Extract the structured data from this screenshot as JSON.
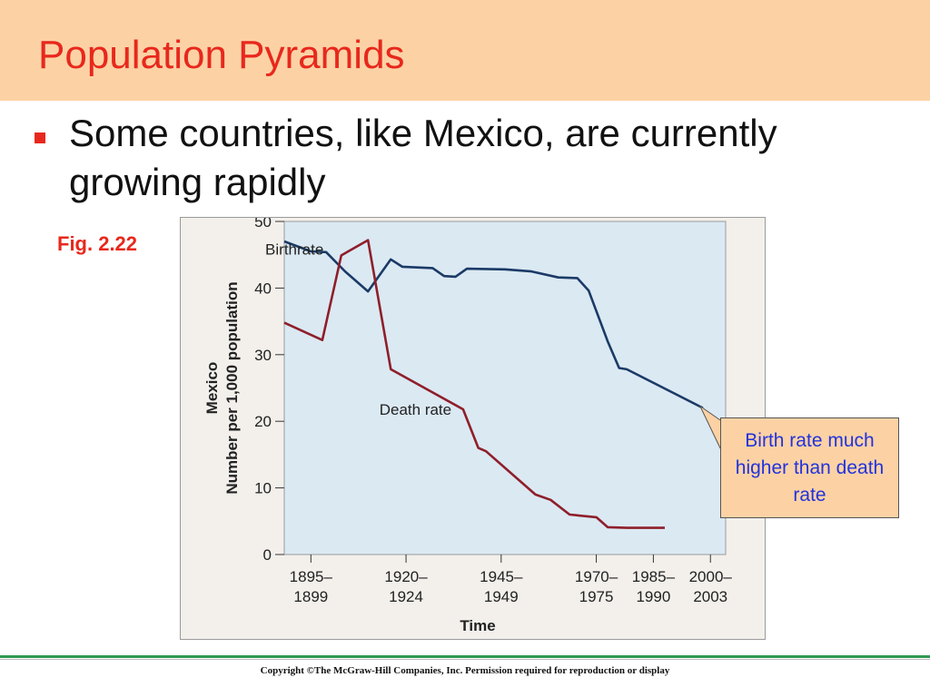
{
  "slide": {
    "title": "Population Pyramids",
    "bullet": "Some countries, like Mexico, are currently growing rapidly",
    "figure_label": "Fig. 2.22",
    "callout": "Birth rate much higher than death rate",
    "copyright": "Copyright ©The McGraw-Hill Companies, Inc. Permission required for reproduction or display"
  },
  "colors": {
    "title": "#e8281c",
    "band": "#fcd2a5",
    "plot_bg": "#dbe9f3",
    "birthrate": "#1b3a66",
    "deathrate": "#8e1f2a",
    "callout_text": "#2233dd"
  },
  "chart_data": {
    "type": "line",
    "ylabel_lines": [
      "Mexico",
      "Number per 1,000 population"
    ],
    "xlabel": "Time",
    "ylim": [
      0,
      50
    ],
    "xlim": [
      1890,
      2006
    ],
    "yticks": [
      0,
      10,
      20,
      30,
      40,
      50
    ],
    "xticks": [
      {
        "x": 1897,
        "label": [
          "1895–",
          "1899"
        ]
      },
      {
        "x": 1922,
        "label": [
          "1920–",
          "1924"
        ]
      },
      {
        "x": 1947,
        "label": [
          "1945–",
          "1949"
        ]
      },
      {
        "x": 1972,
        "label": [
          "1970–",
          "1975"
        ]
      },
      {
        "x": 1987,
        "label": [
          "1985–",
          "1990"
        ]
      },
      {
        "x": 2002,
        "label": [
          "2000–",
          "2003"
        ]
      }
    ],
    "grid": false,
    "series": [
      {
        "name": "Birthrate",
        "label_at": [
          1885,
          45
        ],
        "points": [
          [
            1890,
            47
          ],
          [
            1897,
            45.5
          ],
          [
            1901,
            45.4
          ],
          [
            1906,
            42.5
          ],
          [
            1912,
            39.5
          ],
          [
            1918,
            44.3
          ],
          [
            1921,
            43.2
          ],
          [
            1929,
            43
          ],
          [
            1932,
            41.8
          ],
          [
            1935,
            41.7
          ],
          [
            1938,
            42.9
          ],
          [
            1948,
            42.8
          ],
          [
            1955,
            42.5
          ],
          [
            1962,
            41.6
          ],
          [
            1967,
            41.5
          ],
          [
            1970,
            39.6
          ],
          [
            1975,
            32
          ],
          [
            1978,
            28
          ],
          [
            1980,
            27.8
          ],
          [
            2000,
            22
          ]
        ]
      },
      {
        "name": "Death rate",
        "label_at": [
          1915,
          21
        ],
        "points": [
          [
            1890,
            34.8
          ],
          [
            1900,
            32.2
          ],
          [
            1905,
            44.9
          ],
          [
            1912,
            47.2
          ],
          [
            1918,
            27.8
          ],
          [
            1937,
            21.8
          ],
          [
            1941,
            16
          ],
          [
            1943,
            15.5
          ],
          [
            1956,
            9
          ],
          [
            1960,
            8.2
          ],
          [
            1965,
            6
          ],
          [
            1972,
            5.6
          ],
          [
            1975,
            4.1
          ],
          [
            1980,
            4
          ],
          [
            1990,
            4
          ]
        ]
      }
    ]
  }
}
